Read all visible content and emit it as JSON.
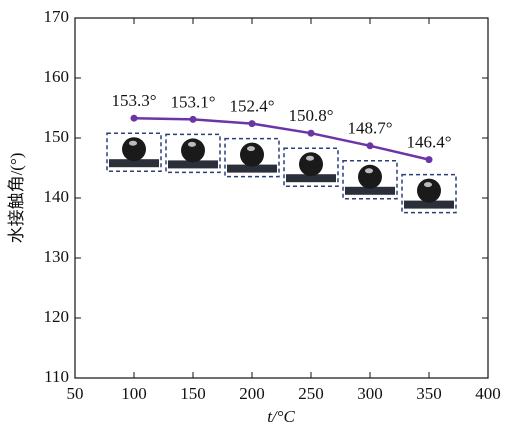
{
  "chart_data": {
    "type": "line",
    "x_label": "t/°C",
    "y_label": "水接触角/(°)",
    "x": [
      100,
      150,
      200,
      250,
      300,
      350
    ],
    "series": [
      {
        "color": "#6b35a6",
        "values": [
          153.3,
          153.1,
          152.4,
          150.8,
          148.7,
          146.4
        ],
        "value_labels": [
          "153.3°",
          "153.1°",
          "152.4°",
          "150.8°",
          "148.7°",
          "146.4°"
        ]
      }
    ],
    "xlim": [
      50,
      400
    ],
    "xticks": [
      50,
      100,
      150,
      200,
      250,
      300,
      350,
      400
    ],
    "ylim": [
      110,
      170
    ],
    "yticks": [
      110,
      120,
      130,
      140,
      150,
      160,
      170
    ],
    "grid": false
  }
}
